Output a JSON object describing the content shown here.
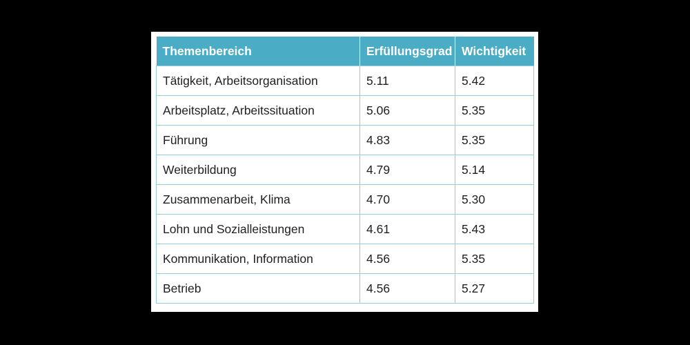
{
  "colors": {
    "background": "#000000",
    "header_fill": "#4bacc6",
    "header_text": "#ffffff",
    "grid_line": "#92cddc",
    "cell_text": "#1f1f1f"
  },
  "chart_data": {
    "type": "table",
    "columns": [
      "Themenbereich",
      "Erfüllungsgrad",
      "Wichtigkeit"
    ],
    "rows": [
      [
        "Tätigkeit, Arbeitsorganisation",
        "5.11",
        "5.42"
      ],
      [
        "Arbeitsplatz, Arbeitssituation",
        "5.06",
        "5.35"
      ],
      [
        "Führung",
        "4.83",
        "5.35"
      ],
      [
        "Weiterbildung",
        "4.79",
        "5.14"
      ],
      [
        "Zusammenarbeit, Klima",
        "4.70",
        "5.30"
      ],
      [
        "Lohn und Sozialleistungen",
        "4.61",
        "5.43"
      ],
      [
        "Kommunikation, Information",
        "4.56",
        "5.35"
      ],
      [
        "Betrieb",
        "4.56",
        "5.27"
      ]
    ]
  }
}
